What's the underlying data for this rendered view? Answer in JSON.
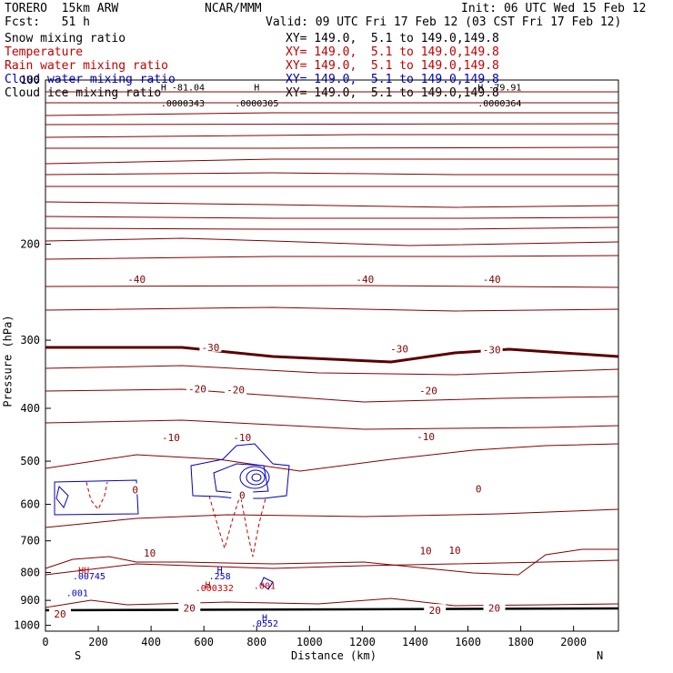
{
  "header": {
    "model": "TORERO  15km ARW",
    "org": "NCAR/MMM",
    "init": "Init: 06 UTC Wed 15 Feb 12",
    "fcst": "Fcst:   51 h",
    "valid": "Valid: 09 UTC Fri 17 Feb 12 (03 CST Fri 17 Feb 12)"
  },
  "legend": [
    {
      "label": "Snow mixing ratio",
      "xy": "XY= 149.0,  5.1 to 149.0,149.8",
      "color": "#000000"
    },
    {
      "label": "Temperature",
      "xy": "XY= 149.0,  5.1 to 149.0,149.8",
      "color": "#c00000"
    },
    {
      "label": "Rain water mixing ratio",
      "xy": "XY= 149.0,  5.1 to 149.0,149.8",
      "color": "#c00000"
    },
    {
      "label": "Cloud water mixing ratio",
      "xy": "XY= 149.0,  5.1 to 149.0,149.8",
      "color": "#0000c0"
    },
    {
      "label": "Cloud ice mixing ratio",
      "xy": "XY= 149.0,  5.1 to 149.0,149.8",
      "color": "#000000"
    }
  ],
  "chart_data": {
    "type": "contour",
    "ylabel": "Pressure (hPa)",
    "xlabel": "Distance (km)",
    "x_left_label": "S",
    "x_right_label": "N",
    "xlim": [
      0,
      2170
    ],
    "ylim": [
      1025,
      100
    ],
    "y_scale": "log",
    "x_ticks": [
      0,
      200,
      400,
      600,
      800,
      1000,
      1200,
      1400,
      1600,
      1800,
      2000
    ],
    "y_ticks": [
      100,
      200,
      300,
      400,
      500,
      600,
      700,
      800,
      900,
      1000
    ],
    "temperature_labels": [
      {
        "text": "-40",
        "x": 345,
        "p": 232
      },
      {
        "text": "-40",
        "x": 1210,
        "p": 232
      },
      {
        "text": "-40",
        "x": 1690,
        "p": 232
      },
      {
        "text": "-30",
        "x": 625,
        "p": 309
      },
      {
        "text": "-30",
        "x": 1340,
        "p": 311
      },
      {
        "text": "-30",
        "x": 1690,
        "p": 312
      },
      {
        "text": "-20",
        "x": 575,
        "p": 368
      },
      {
        "text": "-20",
        "x": 720,
        "p": 370
      },
      {
        "text": "-20",
        "x": 1450,
        "p": 371
      },
      {
        "text": "-10",
        "x": 475,
        "p": 452
      },
      {
        "text": "-10",
        "x": 745,
        "p": 452
      },
      {
        "text": "-10",
        "x": 1440,
        "p": 451
      },
      {
        "text": "0",
        "x": 340,
        "p": 564
      },
      {
        "text": "0",
        "x": 745,
        "p": 577
      },
      {
        "text": "0",
        "x": 1640,
        "p": 562
      },
      {
        "text": "10",
        "x": 395,
        "p": 736
      },
      {
        "text": "10",
        "x": 1440,
        "p": 730
      },
      {
        "text": "10",
        "x": 1550,
        "p": 728
      },
      {
        "text": "20",
        "x": 55,
        "p": 952
      },
      {
        "text": "20",
        "x": 545,
        "p": 930
      },
      {
        "text": "20",
        "x": 1475,
        "p": 939
      },
      {
        "text": "20",
        "x": 1700,
        "p": 930
      }
    ],
    "extrema_labels": [
      {
        "text": "H  -81.04",
        "x": 520,
        "p": 103,
        "color": "#000000"
      },
      {
        "text": ".0000343",
        "x": 520,
        "p": 110,
        "color": "#000000"
      },
      {
        "text": "H",
        "x": 800,
        "p": 103,
        "color": "#000000"
      },
      {
        "text": ".0000305",
        "x": 800,
        "p": 110,
        "color": "#000000"
      },
      {
        "text": "H  -79.91",
        "x": 1720,
        "p": 103,
        "color": "#000000"
      },
      {
        "text": ".0000364",
        "x": 1720,
        "p": 110,
        "color": "#000000"
      },
      {
        "text": "HH",
        "x": 145,
        "p": 791,
        "color": "#c00000"
      },
      {
        "text": ".00745",
        "x": 165,
        "p": 811,
        "color": "#0000c0"
      },
      {
        "text": "H",
        "x": 660,
        "p": 791,
        "color": "#0000c0"
      },
      {
        "text": ".258",
        "x": 660,
        "p": 811,
        "color": "#0000c0"
      },
      {
        "text": "H",
        "x": 615,
        "p": 841,
        "color": "#c00000"
      },
      {
        "text": ".000332",
        "x": 640,
        "p": 852,
        "color": "#c00000"
      },
      {
        "text": ".001",
        "x": 830,
        "p": 844,
        "color": "#c00000"
      },
      {
        "text": ".001",
        "x": 120,
        "p": 871,
        "color": "#0000c0"
      },
      {
        "text": "H",
        "x": 830,
        "p": 966,
        "color": "#0000c0"
      },
      {
        "text": ".0552",
        "x": 830,
        "p": 990,
        "color": "#0000c0"
      }
    ]
  }
}
